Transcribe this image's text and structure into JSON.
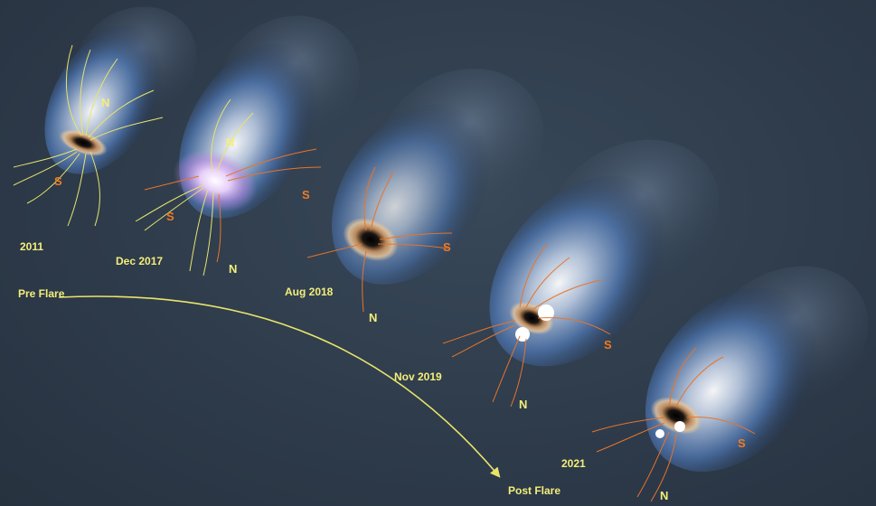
{
  "colors": {
    "background": "#2e3b4b",
    "label": "#f4ee7a",
    "field_yellow": "#e8e46a",
    "field_orange": "#e8742a",
    "north": "#f4ee7a",
    "south": "#f07a22"
  },
  "epochs": [
    {
      "label": "2011",
      "north": "N",
      "south": "S"
    },
    {
      "label": "Dec 2017",
      "north": "N",
      "south": "S"
    },
    {
      "label": "Aug 2018",
      "north": "N",
      "south": "S"
    },
    {
      "label": "Nov 2019",
      "north": "N",
      "south": "S"
    },
    {
      "label": "2021",
      "north": "N",
      "south": "S"
    }
  ],
  "arrow": {
    "start_label": "Pre Flare",
    "end_label": "Post Flare"
  }
}
